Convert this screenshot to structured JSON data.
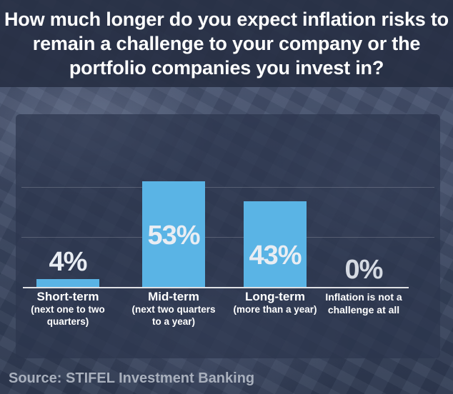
{
  "title": "How much longer do you expect inflation risks to remain a challenge to your company or the portfolio companies you invest in?",
  "source": "Source: STIFEL Investment Banking",
  "colors": {
    "bar": "#5ab4e5",
    "title_band": "#262e42",
    "panel": "#2c364e"
  },
  "chart_data": {
    "type": "bar",
    "title": "How much longer do you expect inflation risks to remain a challenge to your company or the portfolio companies you invest in?",
    "xlabel": "",
    "ylabel": "",
    "ylim": [
      0,
      60
    ],
    "grid": true,
    "categories": [
      "Short-term",
      "Mid-term",
      "Long-term",
      "Inflation is not a challenge at all"
    ],
    "category_details": [
      "(next one to two quarters)",
      "(next two quarters to a year)",
      "(more than a year)",
      ""
    ],
    "values": [
      4,
      53,
      43,
      0
    ],
    "data_labels": [
      "4%",
      "53%",
      "43%",
      "0%"
    ]
  }
}
